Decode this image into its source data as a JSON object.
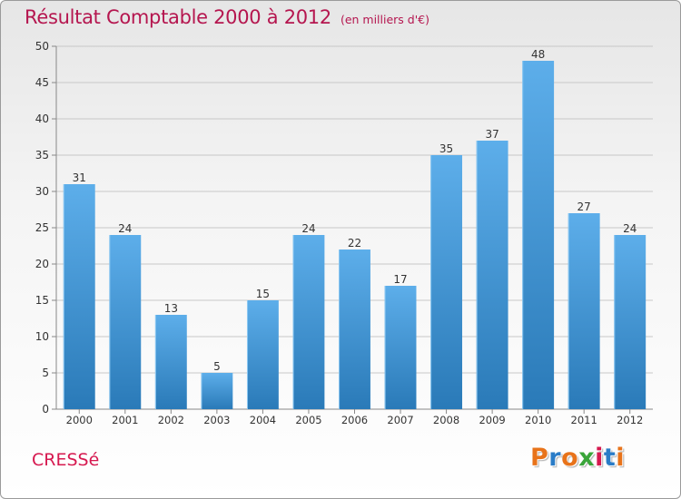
{
  "header": {
    "title": "Résultat Comptable 2000 à 2012",
    "subtitle": "(en milliers d'€)"
  },
  "footer": {
    "commune": "CRESSé",
    "logo_text": "Proxiti",
    "logo_colors": [
      "#e8731a",
      "#2a7cc7",
      "#e8731a",
      "#3aa53a",
      "#d6184f",
      "#2a7cc7",
      "#e8731a"
    ]
  },
  "chart_data": {
    "type": "bar",
    "title": "Résultat Comptable 2000 à 2012",
    "subtitle": "(en milliers d'€)",
    "categories": [
      "2000",
      "2001",
      "2002",
      "2003",
      "2004",
      "2005",
      "2006",
      "2007",
      "2008",
      "2009",
      "2010",
      "2011",
      "2012"
    ],
    "values": [
      31,
      24,
      13,
      5,
      15,
      24,
      22,
      17,
      35,
      37,
      48,
      27,
      24
    ],
    "ylim": [
      0,
      50
    ],
    "yticks": [
      0,
      5,
      10,
      15,
      20,
      25,
      30,
      35,
      40,
      45,
      50
    ],
    "xlabel": "",
    "ylabel": "",
    "grid": true,
    "bar_color_top": "#5daeea",
    "bar_color_bottom": "#2a7ab8"
  }
}
